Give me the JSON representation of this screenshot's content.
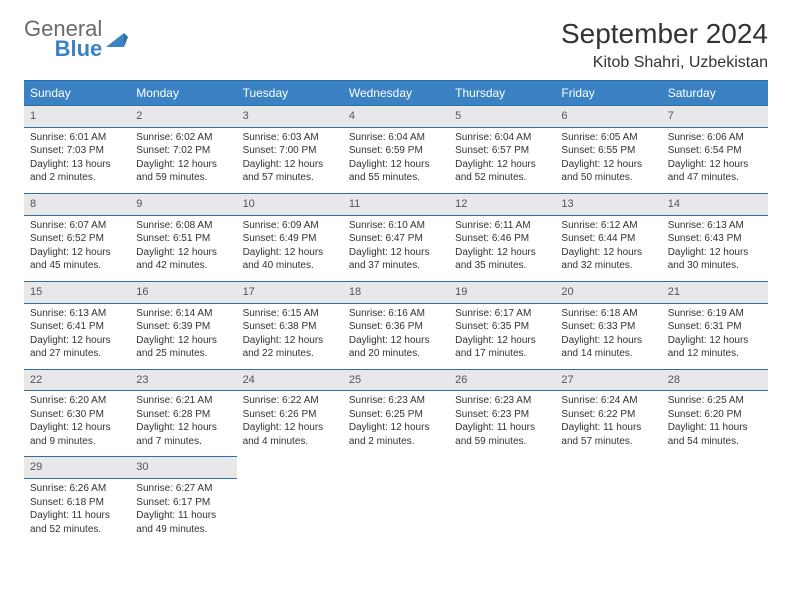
{
  "brand": {
    "name_gray": "General",
    "name_blue": "Blue"
  },
  "title": "September 2024",
  "location": "Kitob Shahri, Uzbekistan",
  "colors": {
    "header_bg": "#3b82c4",
    "header_text": "#ffffff",
    "daynum_bg": "#e8e8e8",
    "border": "#2b6fa8",
    "logo_gray": "#6b6b6b",
    "logo_blue": "#3b82c4"
  },
  "weekdays": [
    "Sunday",
    "Monday",
    "Tuesday",
    "Wednesday",
    "Thursday",
    "Friday",
    "Saturday"
  ],
  "days": [
    {
      "n": "1",
      "sunrise": "6:01 AM",
      "sunset": "7:03 PM",
      "daylight": "13 hours and 2 minutes."
    },
    {
      "n": "2",
      "sunrise": "6:02 AM",
      "sunset": "7:02 PM",
      "daylight": "12 hours and 59 minutes."
    },
    {
      "n": "3",
      "sunrise": "6:03 AM",
      "sunset": "7:00 PM",
      "daylight": "12 hours and 57 minutes."
    },
    {
      "n": "4",
      "sunrise": "6:04 AM",
      "sunset": "6:59 PM",
      "daylight": "12 hours and 55 minutes."
    },
    {
      "n": "5",
      "sunrise": "6:04 AM",
      "sunset": "6:57 PM",
      "daylight": "12 hours and 52 minutes."
    },
    {
      "n": "6",
      "sunrise": "6:05 AM",
      "sunset": "6:55 PM",
      "daylight": "12 hours and 50 minutes."
    },
    {
      "n": "7",
      "sunrise": "6:06 AM",
      "sunset": "6:54 PM",
      "daylight": "12 hours and 47 minutes."
    },
    {
      "n": "8",
      "sunrise": "6:07 AM",
      "sunset": "6:52 PM",
      "daylight": "12 hours and 45 minutes."
    },
    {
      "n": "9",
      "sunrise": "6:08 AM",
      "sunset": "6:51 PM",
      "daylight": "12 hours and 42 minutes."
    },
    {
      "n": "10",
      "sunrise": "6:09 AM",
      "sunset": "6:49 PM",
      "daylight": "12 hours and 40 minutes."
    },
    {
      "n": "11",
      "sunrise": "6:10 AM",
      "sunset": "6:47 PM",
      "daylight": "12 hours and 37 minutes."
    },
    {
      "n": "12",
      "sunrise": "6:11 AM",
      "sunset": "6:46 PM",
      "daylight": "12 hours and 35 minutes."
    },
    {
      "n": "13",
      "sunrise": "6:12 AM",
      "sunset": "6:44 PM",
      "daylight": "12 hours and 32 minutes."
    },
    {
      "n": "14",
      "sunrise": "6:13 AM",
      "sunset": "6:43 PM",
      "daylight": "12 hours and 30 minutes."
    },
    {
      "n": "15",
      "sunrise": "6:13 AM",
      "sunset": "6:41 PM",
      "daylight": "12 hours and 27 minutes."
    },
    {
      "n": "16",
      "sunrise": "6:14 AM",
      "sunset": "6:39 PM",
      "daylight": "12 hours and 25 minutes."
    },
    {
      "n": "17",
      "sunrise": "6:15 AM",
      "sunset": "6:38 PM",
      "daylight": "12 hours and 22 minutes."
    },
    {
      "n": "18",
      "sunrise": "6:16 AM",
      "sunset": "6:36 PM",
      "daylight": "12 hours and 20 minutes."
    },
    {
      "n": "19",
      "sunrise": "6:17 AM",
      "sunset": "6:35 PM",
      "daylight": "12 hours and 17 minutes."
    },
    {
      "n": "20",
      "sunrise": "6:18 AM",
      "sunset": "6:33 PM",
      "daylight": "12 hours and 14 minutes."
    },
    {
      "n": "21",
      "sunrise": "6:19 AM",
      "sunset": "6:31 PM",
      "daylight": "12 hours and 12 minutes."
    },
    {
      "n": "22",
      "sunrise": "6:20 AM",
      "sunset": "6:30 PM",
      "daylight": "12 hours and 9 minutes."
    },
    {
      "n": "23",
      "sunrise": "6:21 AM",
      "sunset": "6:28 PM",
      "daylight": "12 hours and 7 minutes."
    },
    {
      "n": "24",
      "sunrise": "6:22 AM",
      "sunset": "6:26 PM",
      "daylight": "12 hours and 4 minutes."
    },
    {
      "n": "25",
      "sunrise": "6:23 AM",
      "sunset": "6:25 PM",
      "daylight": "12 hours and 2 minutes."
    },
    {
      "n": "26",
      "sunrise": "6:23 AM",
      "sunset": "6:23 PM",
      "daylight": "11 hours and 59 minutes."
    },
    {
      "n": "27",
      "sunrise": "6:24 AM",
      "sunset": "6:22 PM",
      "daylight": "11 hours and 57 minutes."
    },
    {
      "n": "28",
      "sunrise": "6:25 AM",
      "sunset": "6:20 PM",
      "daylight": "11 hours and 54 minutes."
    },
    {
      "n": "29",
      "sunrise": "6:26 AM",
      "sunset": "6:18 PM",
      "daylight": "11 hours and 52 minutes."
    },
    {
      "n": "30",
      "sunrise": "6:27 AM",
      "sunset": "6:17 PM",
      "daylight": "11 hours and 49 minutes."
    }
  ],
  "labels": {
    "sunrise": "Sunrise:",
    "sunset": "Sunset:",
    "daylight": "Daylight:"
  }
}
